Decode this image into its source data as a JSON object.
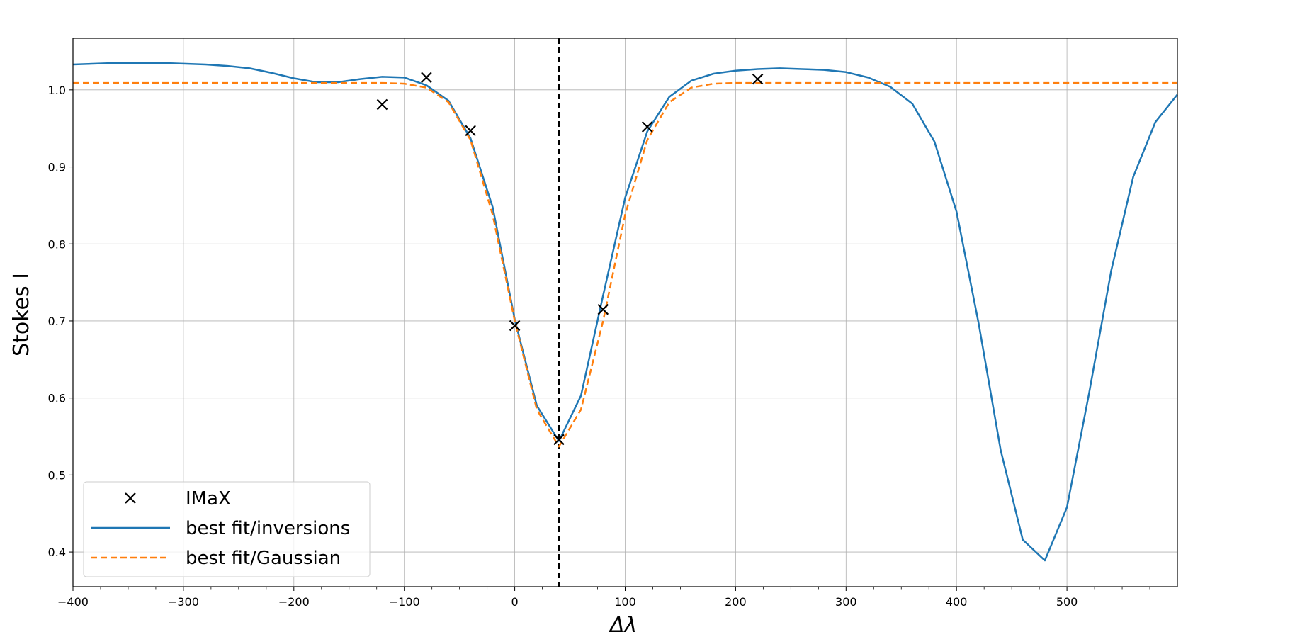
{
  "chart_data": {
    "type": "line",
    "xlabel": "Δλ",
    "ylabel": "Stokes I",
    "xlim": [
      -400,
      600
    ],
    "ylim": [
      0.355,
      1.067
    ],
    "grid": true,
    "legend_placement": "lower-left",
    "xticks": [
      -400,
      -300,
      -200,
      -100,
      0,
      100,
      200,
      300,
      400,
      500
    ],
    "xtick_labels": [
      "−400",
      "−300",
      "−200",
      "−100",
      "0",
      "100",
      "200",
      "300",
      "400",
      "500"
    ],
    "yticks": [
      0.4,
      0.5,
      0.6,
      0.7,
      0.8,
      0.9,
      1.0
    ],
    "ytick_labels": [
      "0.4",
      "0.5",
      "0.6",
      "0.7",
      "0.8",
      "0.9",
      "1.0"
    ],
    "vline": {
      "x": 40,
      "style": "dashed",
      "color": "#000000"
    },
    "colors": {
      "inversions": "#1f77b4",
      "gaussian": "#ff7f0e",
      "imax": "#000000"
    },
    "series": [
      {
        "name": "IMaX",
        "kind": "scatter",
        "marker": "x",
        "x": [
          -120,
          -80,
          -40,
          0,
          40,
          80,
          120,
          220
        ],
        "y": [
          0.981,
          1.016,
          0.947,
          0.694,
          0.546,
          0.715,
          0.952,
          1.014
        ]
      },
      {
        "name": "best fit/inversions",
        "kind": "line",
        "x": [
          -400,
          -380,
          -360,
          -340,
          -320,
          -300,
          -280,
          -260,
          -240,
          -220,
          -200,
          -180,
          -160,
          -140,
          -120,
          -100,
          -80,
          -60,
          -40,
          -20,
          0,
          20,
          40,
          60,
          80,
          100,
          120,
          140,
          160,
          180,
          200,
          220,
          240,
          260,
          280,
          300,
          320,
          340,
          360,
          380,
          400,
          420,
          440,
          460,
          480,
          500,
          520,
          540,
          560,
          580,
          600
        ],
        "y": [
          1.033,
          1.034,
          1.035,
          1.035,
          1.035,
          1.034,
          1.033,
          1.031,
          1.028,
          1.022,
          1.015,
          1.01,
          1.01,
          1.014,
          1.017,
          1.016,
          1.006,
          0.986,
          0.937,
          0.848,
          0.702,
          0.59,
          0.544,
          0.603,
          0.733,
          0.86,
          0.946,
          0.991,
          1.012,
          1.021,
          1.025,
          1.027,
          1.028,
          1.027,
          1.026,
          1.023,
          1.016,
          1.004,
          0.982,
          0.933,
          0.842,
          0.697,
          0.532,
          0.416,
          0.389,
          0.458,
          0.606,
          0.765,
          0.887,
          0.958,
          0.994
        ]
      },
      {
        "name": "best fit/Gaussian",
        "kind": "line",
        "style": "dashed",
        "x": [
          -400,
          -380,
          -360,
          -340,
          -320,
          -300,
          -280,
          -260,
          -240,
          -220,
          -200,
          -180,
          -160,
          -140,
          -120,
          -100,
          -80,
          -60,
          -40,
          -20,
          0,
          20,
          40,
          60,
          80,
          100,
          120,
          140,
          160,
          180,
          200,
          220,
          240,
          260,
          280,
          300,
          320,
          340,
          360,
          380,
          400,
          420,
          440,
          460,
          480,
          500,
          520,
          540,
          560,
          580,
          600
        ],
        "y": [
          1.009,
          1.009,
          1.009,
          1.009,
          1.009,
          1.009,
          1.009,
          1.009,
          1.009,
          1.009,
          1.009,
          1.009,
          1.009,
          1.009,
          1.009,
          1.008,
          1.003,
          0.984,
          0.935,
          0.838,
          0.7,
          0.585,
          0.537,
          0.585,
          0.7,
          0.838,
          0.935,
          0.984,
          1.003,
          1.008,
          1.009,
          1.009,
          1.009,
          1.009,
          1.009,
          1.009,
          1.009,
          1.009,
          1.009,
          1.009,
          1.009,
          1.009,
          1.009,
          1.009,
          1.009,
          1.009,
          1.009,
          1.009,
          1.009,
          1.009,
          1.009
        ]
      }
    ]
  },
  "legend": {
    "imax": "IMaX",
    "inversions": "best fit/inversions",
    "gaussian": "best fit/Gaussian"
  }
}
